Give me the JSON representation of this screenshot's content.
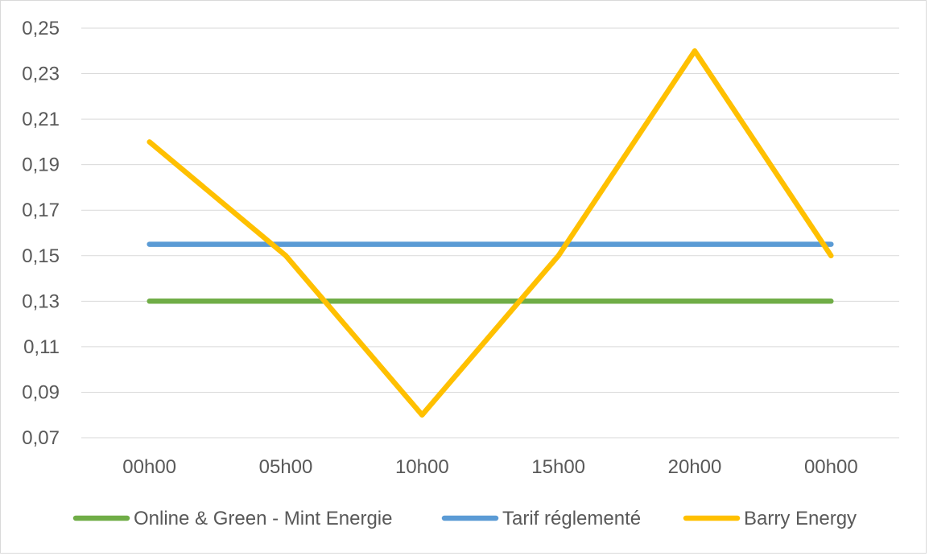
{
  "chart_data": {
    "type": "line",
    "title": "",
    "xlabel": "",
    "ylabel": "",
    "categories": [
      "00h00",
      "05h00",
      "10h00",
      "15h00",
      "20h00",
      "00h00"
    ],
    "y_ticks": [
      "0,07",
      "0,09",
      "0,11",
      "0,13",
      "0,15",
      "0,17",
      "0,19",
      "0,21",
      "0,23",
      "0,25"
    ],
    "ylim": [
      0.07,
      0.25
    ],
    "grid": true,
    "legend_position": "bottom",
    "series": [
      {
        "name": "Online & Green - Mint Energie",
        "color": "#70ad47",
        "values": [
          0.13,
          0.13,
          0.13,
          0.13,
          0.13,
          0.13
        ]
      },
      {
        "name": "Tarif réglementé",
        "color": "#5b9bd5",
        "values": [
          0.155,
          0.155,
          0.155,
          0.155,
          0.155,
          0.155
        ]
      },
      {
        "name": "Barry Energy",
        "color": "#ffc000",
        "values": [
          0.2,
          0.15,
          0.08,
          0.15,
          0.24,
          0.15
        ]
      }
    ]
  }
}
